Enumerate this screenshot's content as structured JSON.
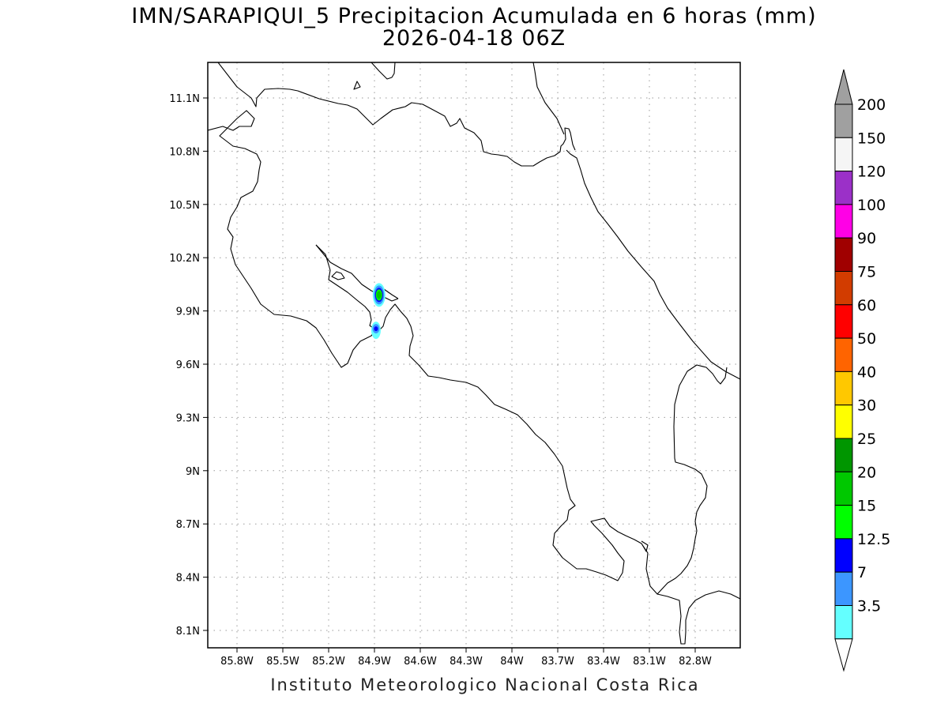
{
  "title": {
    "line1": "IMN/SARAPIQUI_5 Precipitacion Acumulada en 6 horas (mm)",
    "line2": "2026-04-18 06Z"
  },
  "footer": "Instituto Meteorologico Nacional Costa Rica",
  "map": {
    "lon_ticks": [
      {
        "value": -85.8,
        "label": "85.8W"
      },
      {
        "value": -85.5,
        "label": "85.5W"
      },
      {
        "value": -85.2,
        "label": "85.2W"
      },
      {
        "value": -84.9,
        "label": "84.9W"
      },
      {
        "value": -84.6,
        "label": "84.6W"
      },
      {
        "value": -84.3,
        "label": "84.3W"
      },
      {
        "value": -84.0,
        "label": "84W"
      },
      {
        "value": -83.7,
        "label": "83.7W"
      },
      {
        "value": -83.4,
        "label": "83.4W"
      },
      {
        "value": -83.1,
        "label": "83.1W"
      },
      {
        "value": -82.8,
        "label": "82.8W"
      }
    ],
    "lat_ticks": [
      {
        "value": 11.1,
        "label": "11.1N"
      },
      {
        "value": 10.8,
        "label": "10.8N"
      },
      {
        "value": 10.5,
        "label": "10.5N"
      },
      {
        "value": 10.2,
        "label": "10.2N"
      },
      {
        "value": 9.9,
        "label": "9.9N"
      },
      {
        "value": 9.6,
        "label": "9.6N"
      },
      {
        "value": 9.3,
        "label": "9.3N"
      },
      {
        "value": 9.0,
        "label": "9N"
      },
      {
        "value": 8.7,
        "label": "8.7N"
      },
      {
        "value": 8.4,
        "label": "8.4N"
      },
      {
        "value": 8.1,
        "label": "8.1N"
      }
    ],
    "grid": true,
    "precip_cells": [
      {
        "lon": -84.87,
        "lat": 9.99,
        "level": "20-25"
      },
      {
        "lon": -84.89,
        "lat": 9.8,
        "level": "12.5-15"
      }
    ]
  },
  "legend": {
    "levels": [
      {
        "label": "200",
        "color": "#a0a0a0"
      },
      {
        "label": "150",
        "color": "#f5f5f5"
      },
      {
        "label": "120",
        "color": "#9b30c8"
      },
      {
        "label": "100",
        "color": "#ff00e6"
      },
      {
        "label": "90",
        "color": "#a00000"
      },
      {
        "label": "75",
        "color": "#d23c00"
      },
      {
        "label": "60",
        "color": "#ff0000"
      },
      {
        "label": "50",
        "color": "#ff6400"
      },
      {
        "label": "40",
        "color": "#ffc800"
      },
      {
        "label": "30",
        "color": "#ffff00"
      },
      {
        "label": "25",
        "color": "#009600"
      },
      {
        "label": "20",
        "color": "#00c800"
      },
      {
        "label": "15",
        "color": "#00ff00"
      },
      {
        "label": "12.5",
        "color": "#0000ff"
      },
      {
        "label": "7",
        "color": "#3c96ff"
      },
      {
        "label": "3.5",
        "color": "#64ffff"
      }
    ],
    "top_arrow_color": "#a0a0a0",
    "bottom_arrow_color": "#ffffff"
  }
}
